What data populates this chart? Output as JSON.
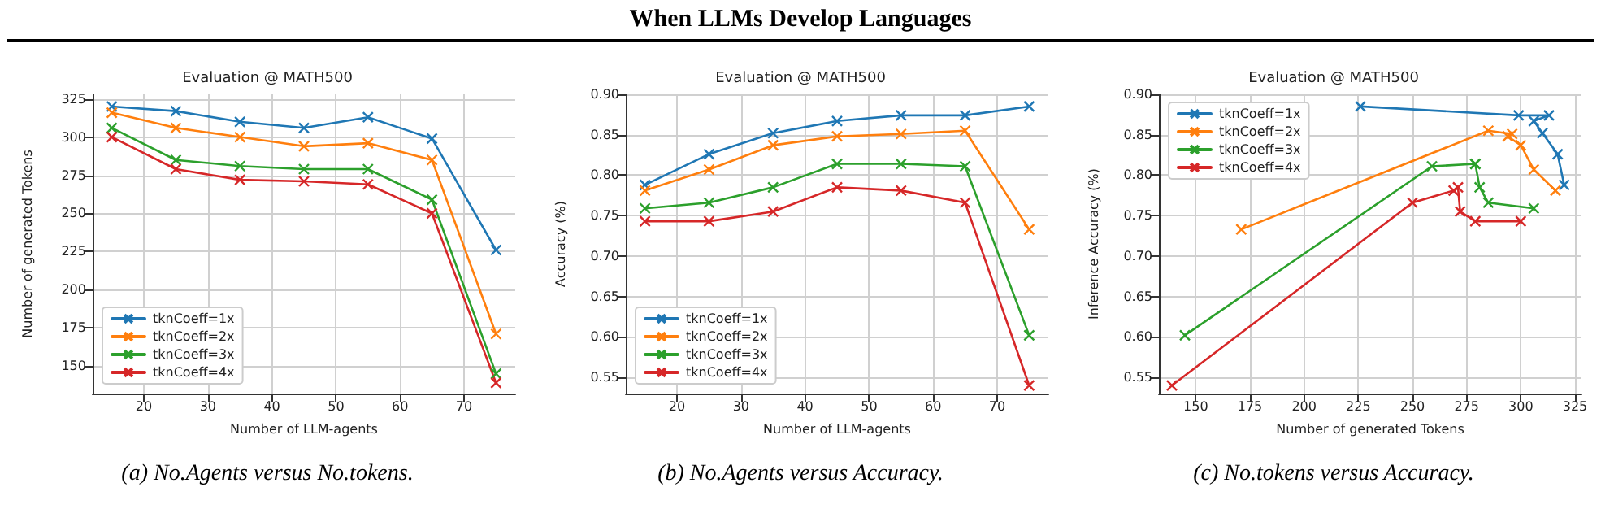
{
  "chart_data": [
    {
      "type": "line",
      "title": "Evaluation @ MATH500",
      "xlabel": "Number of LLM-agents",
      "ylabel": "Number of generated Tokens",
      "annotations": [
        "When LLMs Develop Languages",
        "(a) No.Agents versus No.tokens."
      ],
      "x": [
        15,
        25,
        35,
        45,
        55,
        65,
        75
      ],
      "xlim": [
        12,
        78
      ],
      "xticks": [
        20,
        30,
        40,
        50,
        60,
        70
      ],
      "ylim": [
        132,
        328
      ],
      "yticks": [
        150,
        175,
        200,
        225,
        250,
        275,
        300,
        325
      ],
      "grid": true,
      "legend": "bottom left",
      "marker": "cross",
      "line_style": "solid",
      "series": [
        {
          "name": "tknCoeff=1x",
          "color": "#1f77b4",
          "values": [
            320,
            317,
            310,
            306,
            313,
            299,
            226
          ]
        },
        {
          "name": "tknCoeff=2x",
          "color": "#ff7f0e",
          "values": [
            316,
            306,
            300,
            294,
            296,
            285,
            171
          ]
        },
        {
          "name": "tknCoeff=3x",
          "color": "#2ca02c",
          "values": [
            306,
            285,
            281,
            279,
            279,
            259,
            145
          ]
        },
        {
          "name": "tknCoeff=4x",
          "color": "#d62728",
          "values": [
            300,
            279,
            272,
            271,
            269,
            250,
            139
          ]
        }
      ]
    },
    {
      "type": "line",
      "title": "Evaluation @ MATH500",
      "xlabel": "Number of LLM-agents",
      "ylabel": "Accuracy (%)",
      "annotations": [
        "(b) No.Agents versus Accuracy."
      ],
      "x": [
        15,
        25,
        35,
        45,
        55,
        65,
        75
      ],
      "xlim": [
        12,
        78
      ],
      "xticks": [
        20,
        30,
        40,
        50,
        60,
        70
      ],
      "ylim": [
        0.53,
        0.9
      ],
      "yticks": [
        {
          "value": 0.55,
          "label": "0.55"
        },
        {
          "value": 0.6,
          "label": "0.60"
        },
        {
          "value": 0.65,
          "label": "0.65"
        },
        {
          "value": 0.7,
          "label": "0.70"
        },
        {
          "value": 0.75,
          "label": "0.75"
        },
        {
          "value": 0.8,
          "label": "0.80"
        },
        {
          "value": 0.85,
          "label": "0.85"
        },
        {
          "value": 0.9,
          "label": "0.90"
        }
      ],
      "grid": true,
      "legend": "bottom left",
      "marker": "cross",
      "line_style": "solid",
      "series": [
        {
          "name": "tknCoeff=1x",
          "color": "#1f77b4",
          "values": [
            0.788,
            0.826,
            0.852,
            0.867,
            0.874,
            0.874,
            0.885
          ]
        },
        {
          "name": "tknCoeff=2x",
          "color": "#ff7f0e",
          "values": [
            0.781,
            0.807,
            0.837,
            0.848,
            0.851,
            0.855,
            0.733
          ]
        },
        {
          "name": "tknCoeff=3x",
          "color": "#2ca02c",
          "values": [
            0.759,
            0.766,
            0.785,
            0.814,
            0.814,
            0.811,
            0.602
          ]
        },
        {
          "name": "tknCoeff=4x",
          "color": "#d62728",
          "values": [
            0.743,
            0.743,
            0.755,
            0.785,
            0.781,
            0.766,
            0.54
          ]
        }
      ]
    },
    {
      "type": "line",
      "title": "Evaluation @ MATH500",
      "xlabel": "Number of generated Tokens",
      "ylabel": "Inference Accuracy (%)",
      "annotations": [
        "(c) No.tokens versus Accuracy."
      ],
      "xlim": [
        133,
        328
      ],
      "xticks": [
        150,
        175,
        200,
        225,
        250,
        275,
        300,
        325
      ],
      "ylim": [
        0.53,
        0.9
      ],
      "yticks": [
        {
          "value": 0.55,
          "label": "0.55"
        },
        {
          "value": 0.6,
          "label": "0.60"
        },
        {
          "value": 0.65,
          "label": "0.65"
        },
        {
          "value": 0.7,
          "label": "0.70"
        },
        {
          "value": 0.75,
          "label": "0.75"
        },
        {
          "value": 0.8,
          "label": "0.80"
        },
        {
          "value": 0.85,
          "label": "0.85"
        },
        {
          "value": 0.9,
          "label": "0.90"
        }
      ],
      "grid": true,
      "legend": "top left",
      "marker": "cross",
      "line_style": "solid",
      "series": [
        {
          "name": "tknCoeff=1x",
          "color": "#1f77b4",
          "x": [
            320,
            317,
            310,
            306,
            313,
            299,
            226
          ],
          "values": [
            0.788,
            0.826,
            0.852,
            0.867,
            0.874,
            0.874,
            0.885
          ]
        },
        {
          "name": "tknCoeff=2x",
          "color": "#ff7f0e",
          "x": [
            316,
            306,
            300,
            294,
            296,
            285,
            171
          ],
          "values": [
            0.781,
            0.807,
            0.837,
            0.848,
            0.851,
            0.855,
            0.733
          ]
        },
        {
          "name": "tknCoeff=3x",
          "color": "#2ca02c",
          "x": [
            306,
            285,
            281,
            279,
            279,
            259,
            145
          ],
          "values": [
            0.759,
            0.766,
            0.785,
            0.814,
            0.814,
            0.811,
            0.602
          ]
        },
        {
          "name": "tknCoeff=4x",
          "color": "#d62728",
          "x": [
            300,
            279,
            272,
            271,
            269,
            250,
            139
          ],
          "values": [
            0.743,
            0.743,
            0.755,
            0.785,
            0.781,
            0.766,
            0.54
          ]
        }
      ]
    }
  ]
}
